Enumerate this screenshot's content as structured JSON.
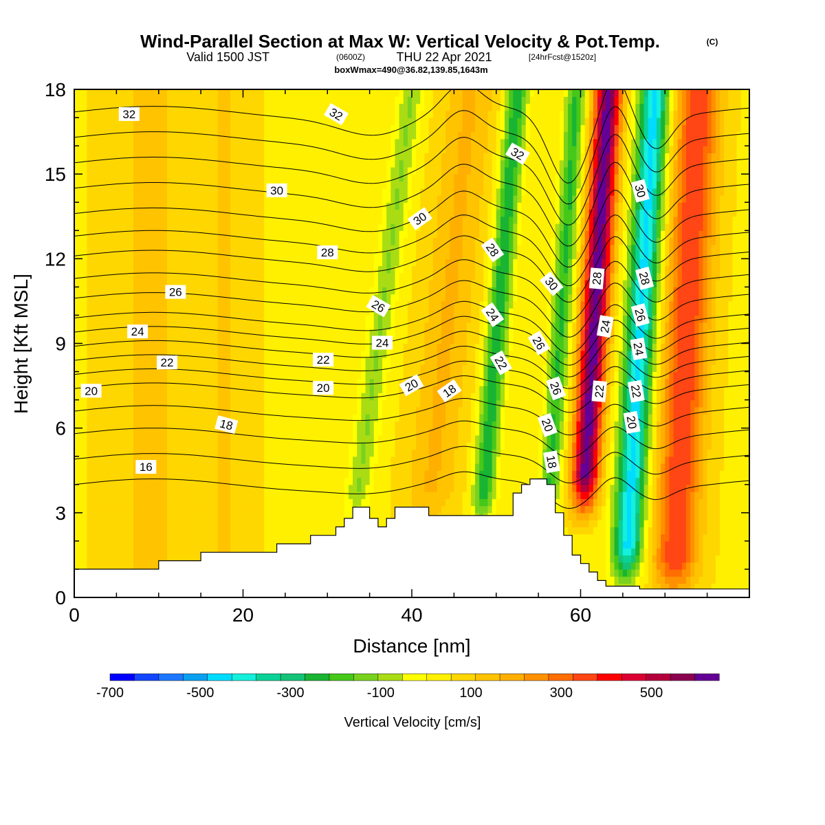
{
  "title": {
    "main": "Wind-Parallel Section at Max W: Vertical Velocity & Pot.Temp.",
    "copyright": "(C)",
    "valid_prefix": "Valid 1500 JST",
    "valid_utc": "(0600Z)",
    "valid_date": "THU 22 Apr 2021",
    "forecast": "[24hrFcst@1520z]",
    "boxline": "boxWmax=490@36.82,139.85,1643m"
  },
  "colors": {
    "terrain": "#ffffff",
    "frame": "#000000",
    "contour": "#000000",
    "palette": [
      "#0000ff",
      "#1446ff",
      "#1e78ff",
      "#0aa0f0",
      "#00dcff",
      "#14f0dc",
      "#0ad296",
      "#14c378",
      "#19b432",
      "#46c819",
      "#78d21e",
      "#aadc14",
      "#ffff00",
      "#fff000",
      "#ffd700",
      "#ffc300",
      "#ffaf00",
      "#ff9100",
      "#ff6e00",
      "#ff4614",
      "#ff0000",
      "#dc0032",
      "#b4003c",
      "#8c0050",
      "#640096"
    ]
  },
  "chart_data": {
    "type": "heatmap",
    "description_fields": [
      "vertical velocity color fill",
      "potential temperature contours"
    ],
    "xlabel": "Distance [nm]",
    "ylabel": "Height [Kft MSL]",
    "xlim": [
      0,
      80
    ],
    "ylim": [
      0,
      18
    ],
    "xticks": [
      0,
      20,
      40,
      60
    ],
    "yticks": [
      0,
      3,
      6,
      9,
      12,
      15,
      18
    ],
    "colorbar": {
      "title": "Vertical Velocity [cm/s]",
      "min": -700,
      "max": 600,
      "step": 50,
      "tick_labels": [
        -700,
        -500,
        -300,
        -100,
        100,
        300,
        500
      ]
    },
    "terrain_profile": [
      [
        0,
        1.0
      ],
      [
        10,
        1.0
      ],
      [
        10,
        1.3
      ],
      [
        15,
        1.3
      ],
      [
        15,
        1.6
      ],
      [
        24,
        1.6
      ],
      [
        24,
        1.9
      ],
      [
        28,
        1.9
      ],
      [
        28,
        2.2
      ],
      [
        31,
        2.2
      ],
      [
        31,
        2.5
      ],
      [
        32,
        2.5
      ],
      [
        32,
        2.8
      ],
      [
        33,
        2.8
      ],
      [
        33,
        3.2
      ],
      [
        35,
        3.2
      ],
      [
        35,
        2.8
      ],
      [
        36,
        2.8
      ],
      [
        36,
        2.5
      ],
      [
        37,
        2.5
      ],
      [
        37,
        2.8
      ],
      [
        38,
        2.8
      ],
      [
        38,
        3.2
      ],
      [
        42,
        3.2
      ],
      [
        42,
        2.9
      ],
      [
        52,
        2.9
      ],
      [
        52,
        3.7
      ],
      [
        53,
        3.7
      ],
      [
        53,
        4.0
      ],
      [
        54,
        4.0
      ],
      [
        54,
        4.2
      ],
      [
        56,
        4.2
      ],
      [
        56,
        4.0
      ],
      [
        57,
        4.0
      ],
      [
        57,
        3.0
      ],
      [
        58,
        3.0
      ],
      [
        58,
        2.2
      ],
      [
        59,
        2.2
      ],
      [
        59,
        1.5
      ],
      [
        60,
        1.5
      ],
      [
        60,
        1.2
      ],
      [
        61,
        1.2
      ],
      [
        61,
        0.9
      ],
      [
        62,
        0.9
      ],
      [
        62,
        0.6
      ],
      [
        63,
        0.6
      ],
      [
        63,
        0.4
      ],
      [
        65,
        0.4
      ],
      [
        65,
        0.4
      ],
      [
        67,
        0.4
      ],
      [
        67,
        0.3
      ],
      [
        80,
        0.3
      ]
    ],
    "velocity_features": [
      {
        "x": 61.5,
        "z_bottom": 3.5,
        "z_top": 18,
        "lean": 1.8,
        "width": 1.6,
        "value": 560
      },
      {
        "x": 67.0,
        "z_bottom": 1.0,
        "z_top": 18,
        "lean": 1.8,
        "width": 1.8,
        "value": -480
      },
      {
        "x": 72.5,
        "z_bottom": 0.5,
        "z_top": 18,
        "lean": 1.5,
        "width": 2.6,
        "value": 320
      },
      {
        "x": 57.5,
        "z_bottom": 3.0,
        "z_top": 18,
        "lean": 2.0,
        "width": 1.2,
        "value": -260
      },
      {
        "x": 50.0,
        "z_bottom": 3.0,
        "z_top": 18,
        "lean": 2.5,
        "width": 1.3,
        "value": -300
      },
      {
        "x": 44.0,
        "z_bottom": 3.0,
        "z_top": 18,
        "lean": 3.0,
        "width": 3.0,
        "value": 120
      },
      {
        "x": 36.0,
        "z_bottom": 3.0,
        "z_top": 18,
        "lean": 4.0,
        "width": 1.5,
        "value": -150
      },
      {
        "x": 9.0,
        "z_bottom": 0,
        "z_top": 18,
        "lean": 0,
        "width": 5.0,
        "value": 70
      },
      {
        "x": 18.0,
        "z_bottom": 0,
        "z_top": 18,
        "lean": 0,
        "width": 3.0,
        "value": 60
      }
    ],
    "theta_contours": [
      {
        "value": 16,
        "height_left": 4.0
      },
      {
        "value": 17,
        "height_left": 4.9
      },
      {
        "value": 18,
        "height_left": 5.8
      },
      {
        "value": 19,
        "height_left": 6.6
      },
      {
        "value": 20,
        "height_left": 7.4
      },
      {
        "value": 21,
        "height_left": 7.9
      },
      {
        "value": 22,
        "height_left": 8.4
      },
      {
        "value": 23,
        "height_left": 8.9
      },
      {
        "value": 24,
        "height_left": 9.4
      },
      {
        "value": 25,
        "height_left": 9.9
      },
      {
        "value": 26,
        "height_left": 10.6
      },
      {
        "value": 27,
        "height_left": 11.3
      },
      {
        "value": 28,
        "height_left": 12.1
      },
      {
        "value": 29,
        "height_left": 12.8
      },
      {
        "value": 30,
        "height_left": 13.6
      },
      {
        "value": 31,
        "height_left": 14.5
      },
      {
        "value": 32,
        "height_left": 15.4
      },
      {
        "value": 33,
        "height_left": 16.3
      },
      {
        "value": 34,
        "height_left": 17.2
      }
    ],
    "contour_labels": [
      {
        "text": "32",
        "x": 6.5,
        "z": 17.1,
        "angle": 0
      },
      {
        "text": "32",
        "x": 31.0,
        "z": 17.1,
        "angle": 30
      },
      {
        "text": "32",
        "x": 52.5,
        "z": 15.7,
        "angle": 30
      },
      {
        "text": "30",
        "x": 24.0,
        "z": 14.4,
        "angle": 0
      },
      {
        "text": "30",
        "x": 41.0,
        "z": 13.4,
        "angle": -35
      },
      {
        "text": "30",
        "x": 56.5,
        "z": 11.1,
        "angle": 50
      },
      {
        "text": "30",
        "x": 67.0,
        "z": 14.4,
        "angle": 75
      },
      {
        "text": "28",
        "x": 30.0,
        "z": 12.2,
        "angle": 0
      },
      {
        "text": "28",
        "x": 49.5,
        "z": 12.3,
        "angle": 55
      },
      {
        "text": "28",
        "x": 62.0,
        "z": 11.3,
        "angle": -85
      },
      {
        "text": "28",
        "x": 67.5,
        "z": 11.3,
        "angle": 75
      },
      {
        "text": "26",
        "x": 12.0,
        "z": 10.8,
        "angle": 0
      },
      {
        "text": "26",
        "x": 36.0,
        "z": 10.3,
        "angle": 30
      },
      {
        "text": "26",
        "x": 55.0,
        "z": 9.0,
        "angle": 60
      },
      {
        "text": "26",
        "x": 57.0,
        "z": 7.4,
        "angle": 70
      },
      {
        "text": "26",
        "x": 67.0,
        "z": 10.0,
        "angle": 75
      },
      {
        "text": "24",
        "x": 7.5,
        "z": 9.4,
        "angle": 0
      },
      {
        "text": "24",
        "x": 36.5,
        "z": 9.0,
        "angle": 0
      },
      {
        "text": "24",
        "x": 49.5,
        "z": 10.0,
        "angle": 55
      },
      {
        "text": "24",
        "x": 63.0,
        "z": 9.6,
        "angle": -80
      },
      {
        "text": "24",
        "x": 66.8,
        "z": 8.8,
        "angle": 80
      },
      {
        "text": "22",
        "x": 11.0,
        "z": 8.3,
        "angle": 0
      },
      {
        "text": "22",
        "x": 29.5,
        "z": 8.4,
        "angle": 0
      },
      {
        "text": "22",
        "x": 50.5,
        "z": 8.3,
        "angle": 60
      },
      {
        "text": "22",
        "x": 62.3,
        "z": 7.3,
        "angle": -85
      },
      {
        "text": "22",
        "x": 66.5,
        "z": 7.3,
        "angle": 80
      },
      {
        "text": "20",
        "x": 2.0,
        "z": 7.3,
        "angle": 0
      },
      {
        "text": "20",
        "x": 29.5,
        "z": 7.4,
        "angle": 0
      },
      {
        "text": "20",
        "x": 40.0,
        "z": 7.5,
        "angle": -30
      },
      {
        "text": "20",
        "x": 56.0,
        "z": 6.1,
        "angle": 70
      },
      {
        "text": "20",
        "x": 66.0,
        "z": 6.2,
        "angle": 80
      },
      {
        "text": "18",
        "x": 18.0,
        "z": 6.1,
        "angle": 15
      },
      {
        "text": "18",
        "x": 44.5,
        "z": 7.3,
        "angle": -35
      },
      {
        "text": "18",
        "x": 56.5,
        "z": 4.8,
        "angle": 80
      },
      {
        "text": "16",
        "x": 8.5,
        "z": 4.6,
        "angle": 0
      }
    ]
  }
}
